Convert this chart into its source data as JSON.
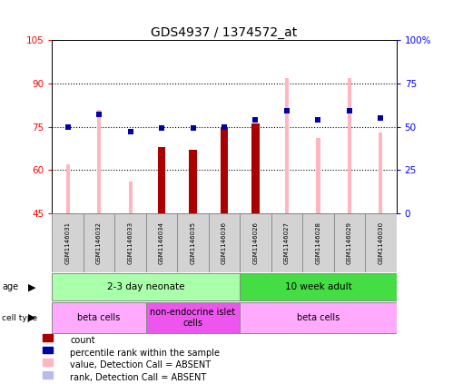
{
  "title": "GDS4937 / 1374572_at",
  "samples": [
    "GSM1146031",
    "GSM1146032",
    "GSM1146033",
    "GSM1146034",
    "GSM1146035",
    "GSM1146036",
    "GSM1146026",
    "GSM1146027",
    "GSM1146028",
    "GSM1146029",
    "GSM1146030"
  ],
  "pink_values": [
    62,
    81,
    56,
    null,
    null,
    null,
    null,
    92,
    71,
    92,
    73
  ],
  "red_values": [
    null,
    null,
    null,
    68,
    67,
    75,
    76,
    null,
    null,
    null,
    null
  ],
  "blue_squares_right": [
    50,
    57,
    47,
    49,
    49,
    50,
    54,
    59,
    54,
    59,
    55
  ],
  "light_blue_squares_right": [
    50,
    null,
    47,
    null,
    null,
    null,
    null,
    59,
    54,
    59,
    55
  ],
  "ylim_left": [
    45,
    105
  ],
  "ylim_right": [
    0,
    100
  ],
  "yticks_left": [
    45,
    60,
    75,
    90,
    105
  ],
  "ytick_labels_left": [
    "45",
    "60",
    "75",
    "90",
    "105"
  ],
  "yticks_right": [
    0,
    25,
    50,
    75,
    100
  ],
  "ytick_labels_right": [
    "0",
    "25",
    "50",
    "75",
    "100%"
  ],
  "age_groups": [
    {
      "label": "2-3 day neonate",
      "start": 0,
      "end": 6,
      "color": "#aaffaa"
    },
    {
      "label": "10 week adult",
      "start": 6,
      "end": 11,
      "color": "#44dd44"
    }
  ],
  "cell_type_groups": [
    {
      "label": "beta cells",
      "start": 0,
      "end": 3,
      "color": "#ffaaff"
    },
    {
      "label": "non-endocrine islet\ncells",
      "start": 3,
      "end": 6,
      "color": "#ee55ee"
    },
    {
      "label": "beta cells",
      "start": 6,
      "end": 11,
      "color": "#ffaaff"
    }
  ],
  "legend_items": [
    {
      "color": "#aa0000",
      "label": "count"
    },
    {
      "color": "#0000aa",
      "label": "percentile rank within the sample"
    },
    {
      "color": "#ffb6c1",
      "label": "value, Detection Call = ABSENT"
    },
    {
      "color": "#b8bce8",
      "label": "rank, Detection Call = ABSENT"
    }
  ],
  "pink_bar_width": 0.12,
  "red_bar_width": 0.25,
  "blue_sq_size": 4
}
